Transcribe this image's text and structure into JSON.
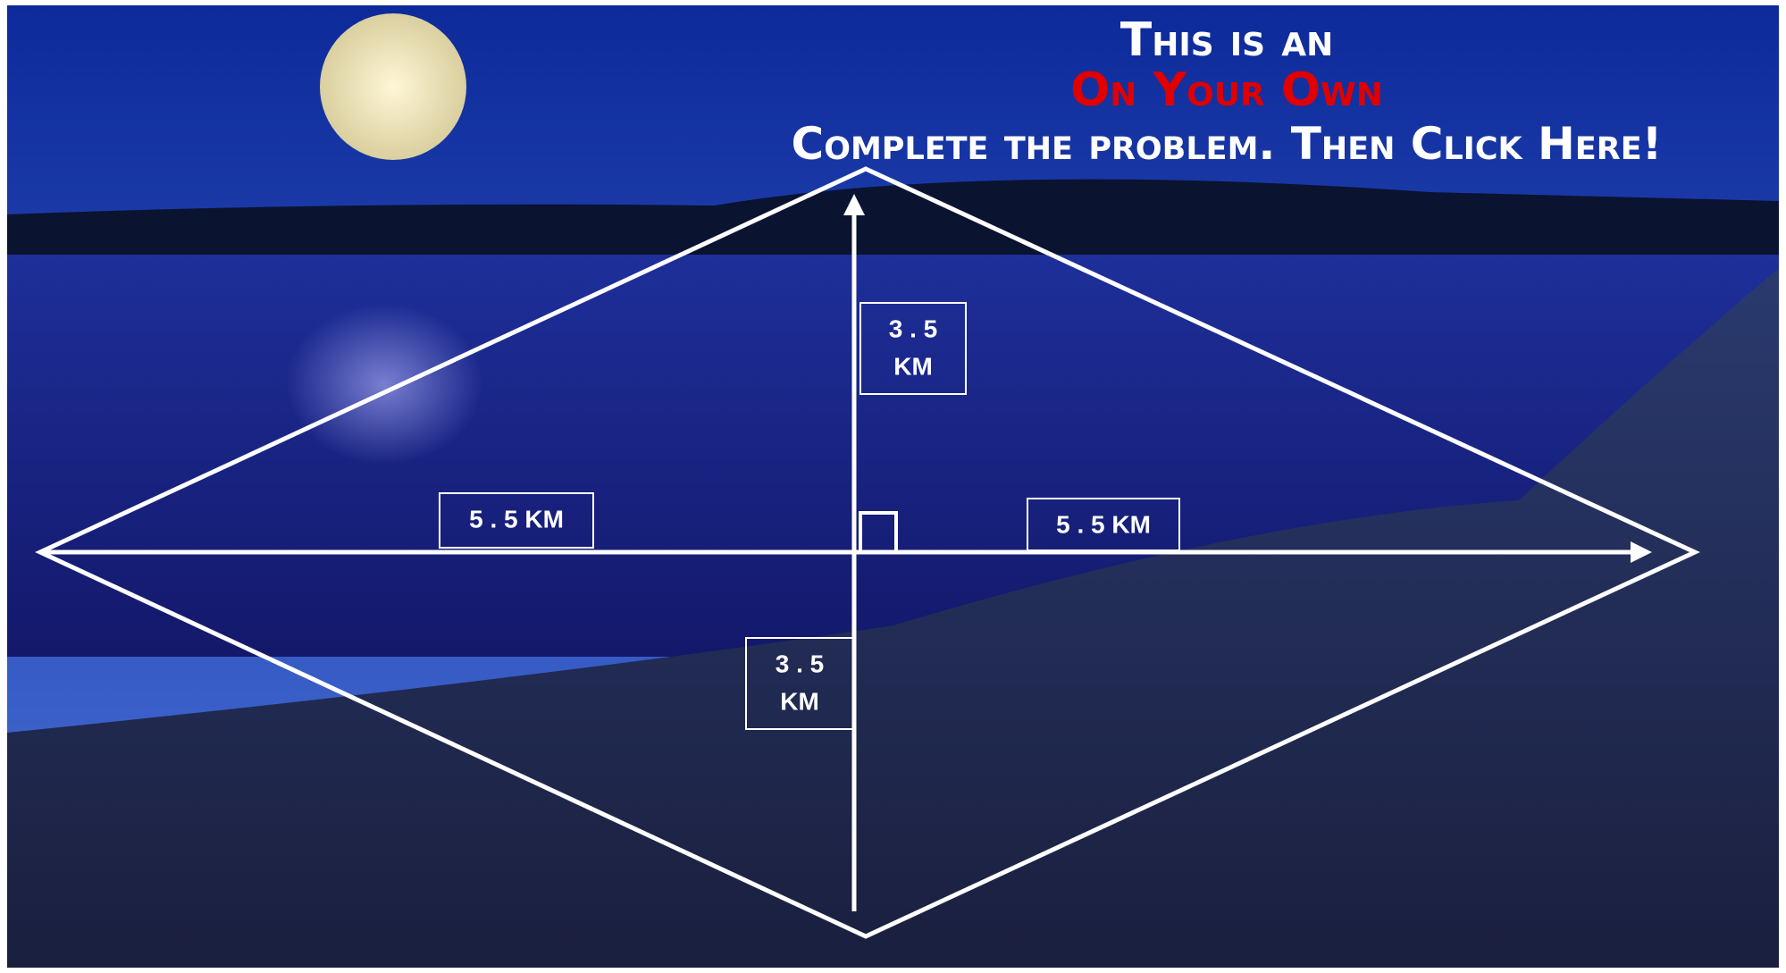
{
  "header": {
    "line1": "This is an",
    "line2": "On Your Own",
    "line3": "Complete the problem.  Then Click Here!"
  },
  "labels": {
    "top": [
      "3 . 5",
      "KM"
    ],
    "left": "5 . 5 KM",
    "right": "5 . 5 KM",
    "bottom": [
      "3 . 5",
      "KM"
    ]
  }
}
